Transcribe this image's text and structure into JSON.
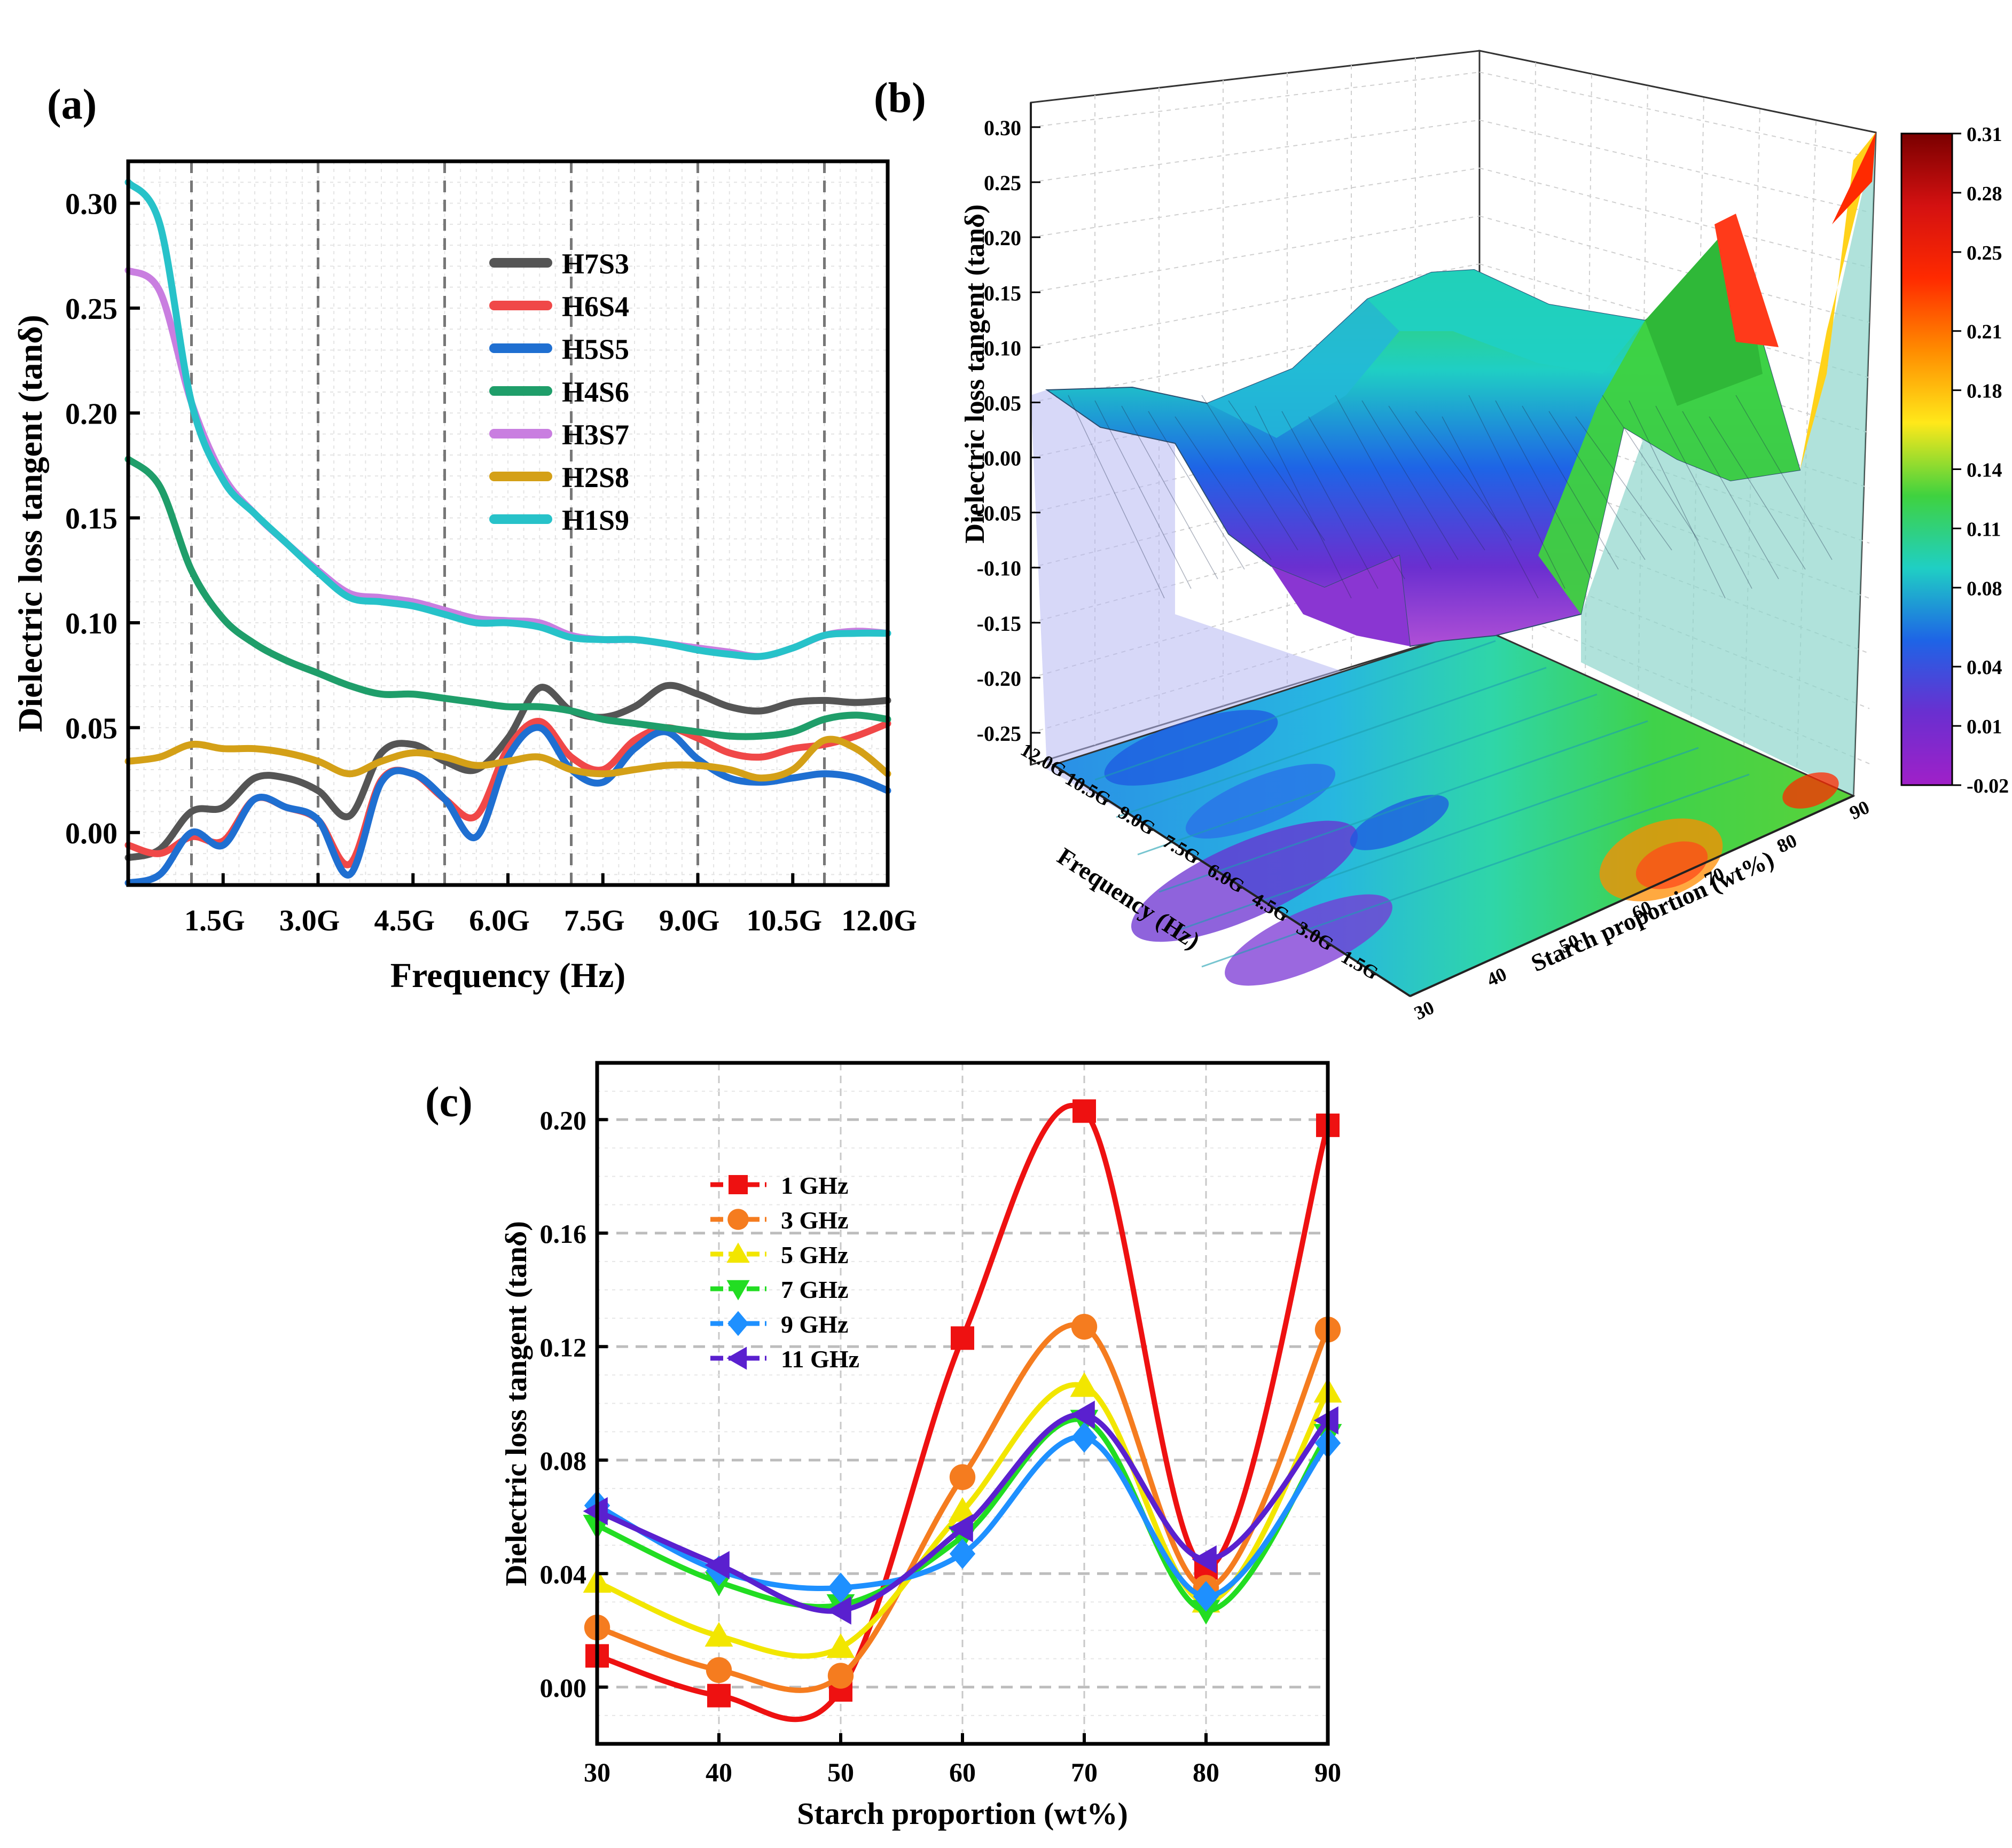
{
  "chart_data": [
    {
      "panel": "(a)",
      "type": "line",
      "xlabel": "Frequency (Hz)",
      "ylabel": "Dielectric loss tangent (tanδ)",
      "x_range_ghz": [
        0.0,
        12.0
      ],
      "ylim": [
        -0.025,
        0.32
      ],
      "x_ticks": [
        {
          "label": "1.5G",
          "value": 1.5
        },
        {
          "label": "3.0G",
          "value": 3.0
        },
        {
          "label": "4.5G",
          "value": 4.5
        },
        {
          "label": "6.0G",
          "value": 6.0
        },
        {
          "label": "7.5G",
          "value": 7.5
        },
        {
          "label": "9.0G",
          "value": 9.0
        },
        {
          "label": "10.5G",
          "value": 10.5
        },
        {
          "label": "12.0G",
          "value": 12.0
        }
      ],
      "y_ticks": [
        {
          "label": "0.00",
          "value": 0.0
        },
        {
          "label": "0.05",
          "value": 0.05
        },
        {
          "label": "0.10",
          "value": 0.1
        },
        {
          "label": "0.15",
          "value": 0.15
        },
        {
          "label": "0.20",
          "value": 0.2
        },
        {
          "label": "0.25",
          "value": 0.25
        },
        {
          "label": "0.30",
          "value": 0.3
        }
      ],
      "major_gridlines_x": [
        1.0,
        3.0,
        5.0,
        7.0,
        9.0,
        11.0
      ],
      "legend_position": "top-center",
      "series": [
        {
          "name": "H7S3",
          "color": "#555555",
          "x": [
            0,
            0.5,
            1,
            1.5,
            2,
            2.5,
            3,
            3.5,
            4,
            4.5,
            5,
            5.5,
            6,
            6.5,
            7,
            7.5,
            8,
            8.5,
            9,
            9.5,
            10,
            10.5,
            11,
            11.5,
            12
          ],
          "y": [
            -0.012,
            -0.008,
            0.01,
            0.012,
            0.026,
            0.026,
            0.02,
            0.008,
            0.038,
            0.042,
            0.034,
            0.03,
            0.045,
            0.069,
            0.058,
            0.055,
            0.06,
            0.07,
            0.066,
            0.06,
            0.058,
            0.062,
            0.063,
            0.062,
            0.063
          ]
        },
        {
          "name": "H6S4",
          "color": "#f04848",
          "x": [
            0,
            0.5,
            1,
            1.5,
            2,
            2.5,
            3,
            3.5,
            4,
            4.5,
            5,
            5.5,
            6,
            6.5,
            7,
            7.5,
            8,
            8.5,
            9,
            9.5,
            10,
            10.5,
            11,
            11.5,
            12
          ],
          "y": [
            -0.006,
            -0.01,
            -0.002,
            -0.004,
            0.016,
            0.012,
            0.006,
            -0.015,
            0.025,
            0.028,
            0.016,
            0.008,
            0.04,
            0.053,
            0.036,
            0.03,
            0.044,
            0.05,
            0.045,
            0.038,
            0.036,
            0.04,
            0.042,
            0.046,
            0.052
          ]
        },
        {
          "name": "H5S5",
          "color": "#1f6fd1",
          "x": [
            0,
            0.5,
            1,
            1.5,
            2,
            2.5,
            3,
            3.5,
            4,
            4.5,
            5,
            5.5,
            6,
            6.5,
            7,
            7.5,
            8,
            8.5,
            9,
            9.5,
            10,
            10.5,
            11,
            11.5,
            12
          ],
          "y": [
            -0.024,
            -0.02,
            0.0,
            -0.006,
            0.016,
            0.012,
            0.006,
            -0.02,
            0.024,
            0.028,
            0.016,
            -0.002,
            0.036,
            0.05,
            0.03,
            0.024,
            0.04,
            0.048,
            0.035,
            0.026,
            0.024,
            0.026,
            0.028,
            0.026,
            0.02
          ]
        },
        {
          "name": "H4S6",
          "color": "#1f9e6a",
          "x": [
            0,
            0.5,
            1,
            1.5,
            2,
            2.5,
            3,
            3.5,
            4,
            4.5,
            5,
            5.5,
            6,
            6.5,
            7,
            7.5,
            8,
            8.5,
            9,
            9.5,
            10,
            10.5,
            11,
            11.5,
            12
          ],
          "y": [
            0.178,
            0.165,
            0.125,
            0.102,
            0.09,
            0.082,
            0.076,
            0.07,
            0.066,
            0.066,
            0.064,
            0.062,
            0.06,
            0.06,
            0.058,
            0.054,
            0.052,
            0.05,
            0.048,
            0.046,
            0.046,
            0.048,
            0.054,
            0.056,
            0.054
          ]
        },
        {
          "name": "H3S7",
          "color": "#c97ee0",
          "x": [
            0,
            0.5,
            1,
            1.5,
            2,
            2.5,
            3,
            3.5,
            4,
            4.5,
            5,
            5.5,
            6,
            6.5,
            7,
            7.5,
            8,
            8.5,
            9,
            9.5,
            10,
            10.5,
            11,
            11.5,
            12
          ],
          "y": [
            0.268,
            0.258,
            0.205,
            0.17,
            0.152,
            0.138,
            0.125,
            0.114,
            0.112,
            0.11,
            0.106,
            0.102,
            0.101,
            0.1,
            0.094,
            0.092,
            0.092,
            0.09,
            0.088,
            0.086,
            0.084,
            0.088,
            0.094,
            0.096,
            0.095
          ]
        },
        {
          "name": "H2S8",
          "color": "#d4a017",
          "x": [
            0,
            0.5,
            1,
            1.5,
            2,
            2.5,
            3,
            3.5,
            4,
            4.5,
            5,
            5.5,
            6,
            6.5,
            7,
            7.5,
            8,
            8.5,
            9,
            9.5,
            10,
            10.5,
            11,
            11.5,
            12
          ],
          "y": [
            0.034,
            0.036,
            0.042,
            0.04,
            0.04,
            0.038,
            0.034,
            0.028,
            0.034,
            0.038,
            0.036,
            0.032,
            0.034,
            0.036,
            0.03,
            0.028,
            0.03,
            0.032,
            0.032,
            0.03,
            0.026,
            0.03,
            0.044,
            0.04,
            0.028
          ]
        },
        {
          "name": "H1S9",
          "color": "#27c2c9",
          "x": [
            0,
            0.5,
            1,
            1.5,
            2,
            2.5,
            3,
            3.5,
            4,
            4.5,
            5,
            5.5,
            6,
            6.5,
            7,
            7.5,
            8,
            8.5,
            9,
            9.5,
            10,
            10.5,
            11,
            11.5,
            12
          ],
          "y": [
            0.31,
            0.29,
            0.205,
            0.168,
            0.152,
            0.138,
            0.124,
            0.112,
            0.11,
            0.108,
            0.104,
            0.1,
            0.1,
            0.098,
            0.093,
            0.092,
            0.092,
            0.09,
            0.087,
            0.085,
            0.084,
            0.088,
            0.094,
            0.095,
            0.095
          ]
        }
      ]
    },
    {
      "panel": "(b)",
      "type": "surface3d",
      "zlabel": "Dielectric loss tangent (tanδ)",
      "xlabel": "Frequency (Hz)",
      "ylabel": "Starch proportion (wt%)",
      "z_ticks": [
        "0.30",
        "0.25",
        "0.20",
        "0.15",
        "0.10",
        "0.05",
        "0.00",
        "-0.05",
        "-0.10",
        "-0.15",
        "-0.20",
        "-0.25"
      ],
      "z_tick_values": [
        0.3,
        0.25,
        0.2,
        0.15,
        0.1,
        0.05,
        0.0,
        -0.05,
        -0.1,
        -0.15,
        -0.2,
        -0.25
      ],
      "frequency_ticks": [
        "12.0G",
        "10.5G",
        "9.0G",
        "7.5G",
        "6.0G",
        "4.5G",
        "3.0G",
        "1.5G"
      ],
      "starch_ticks": [
        "30",
        "40",
        "50",
        "60",
        "70",
        "80",
        "90"
      ],
      "colorbar": {
        "ticks": [
          "0.31",
          "0.28",
          "0.25",
          "0.21",
          "0.18",
          "0.14",
          "0.11",
          "0.08",
          "0.04",
          "0.01",
          "-0.02"
        ],
        "tick_values": [
          0.31,
          0.28,
          0.25,
          0.21,
          0.18,
          0.14,
          0.11,
          0.08,
          0.04,
          0.01,
          -0.02
        ],
        "colors": [
          "#7a0000",
          "#d41111",
          "#ff2a00",
          "#ff8c00",
          "#ffe81a",
          "#3fd23f",
          "#1fcfc4",
          "#1e64e6",
          "#6a2fd0",
          "#a020c8"
        ]
      }
    },
    {
      "panel": "(c)",
      "type": "line",
      "xlabel": "Starch proportion (wt%)",
      "ylabel": "Dielectric loss tangent (tanδ)",
      "xlim": [
        30,
        90
      ],
      "ylim": [
        -0.02,
        0.22
      ],
      "x_ticks": [
        "30",
        "40",
        "50",
        "60",
        "70",
        "80",
        "90"
      ],
      "y_ticks": [
        {
          "label": "0.00",
          "value": 0.0
        },
        {
          "label": "0.04",
          "value": 0.04
        },
        {
          "label": "0.08",
          "value": 0.08
        },
        {
          "label": "0.12",
          "value": 0.12
        },
        {
          "label": "0.16",
          "value": 0.16
        },
        {
          "label": "0.20",
          "value": 0.2
        }
      ],
      "x": [
        30,
        40,
        50,
        60,
        70,
        80,
        90
      ],
      "legend_position": "top-left",
      "series": [
        {
          "name": "1 GHz",
          "color": "#ee1111",
          "marker": "square",
          "values": [
            0.011,
            -0.003,
            -0.001,
            0.123,
            0.203,
            0.042,
            0.198
          ]
        },
        {
          "name": "3 GHz",
          "color": "#f57c1f",
          "marker": "circle",
          "values": [
            0.021,
            0.006,
            0.004,
            0.074,
            0.127,
            0.035,
            0.126
          ]
        },
        {
          "name": "5 GHz",
          "color": "#f2e600",
          "marker": "triangle-up",
          "values": [
            0.037,
            0.018,
            0.014,
            0.062,
            0.106,
            0.03,
            0.104
          ]
        },
        {
          "name": "7 GHz",
          "color": "#22dd22",
          "marker": "triangle-down",
          "values": [
            0.057,
            0.037,
            0.029,
            0.053,
            0.094,
            0.027,
            0.089
          ]
        },
        {
          "name": "9 GHz",
          "color": "#1e90ff",
          "marker": "diamond",
          "values": [
            0.064,
            0.041,
            0.035,
            0.047,
            0.088,
            0.032,
            0.086
          ]
        },
        {
          "name": "11 GHz",
          "color": "#5a20cf",
          "marker": "triangle-left",
          "values": [
            0.062,
            0.043,
            0.027,
            0.056,
            0.096,
            0.045,
            0.094
          ]
        }
      ]
    }
  ],
  "panel_labels": {
    "a": "(a)",
    "b": "(b)",
    "c": "(c)"
  }
}
